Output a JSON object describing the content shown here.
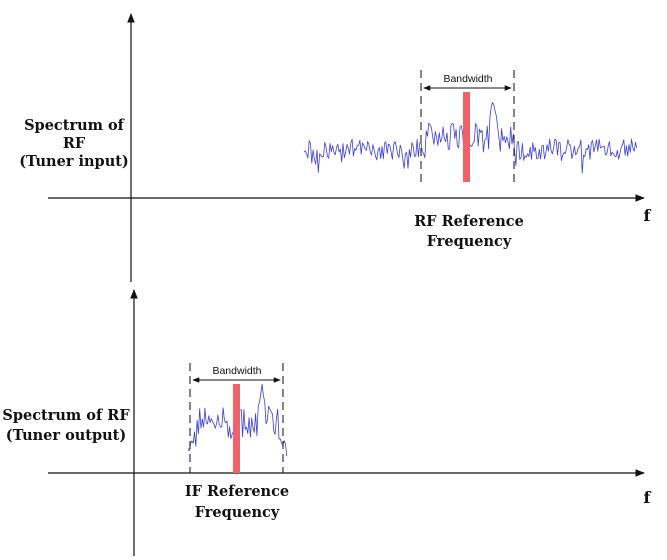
{
  "top_panel": {
    "ylabel_lines": [
      "Spectrum of",
      "RF",
      "(Tuner input)"
    ],
    "bandwidth_label": "Bandwidth",
    "reference_label_lines": [
      "RF Reference",
      "Frequency"
    ],
    "x_axis_label": "f"
  },
  "bottom_panel": {
    "ylabel_lines": [
      "Spectrum of RF",
      "(Tuner output)"
    ],
    "bandwidth_label": "Bandwidth",
    "reference_label_lines": [
      "IF Reference",
      "Frequency"
    ],
    "x_axis_label": "f"
  },
  "colors": {
    "spectrum": "#3b3fd8",
    "reference_marker": "#f0626a",
    "axis": "#111111"
  }
}
